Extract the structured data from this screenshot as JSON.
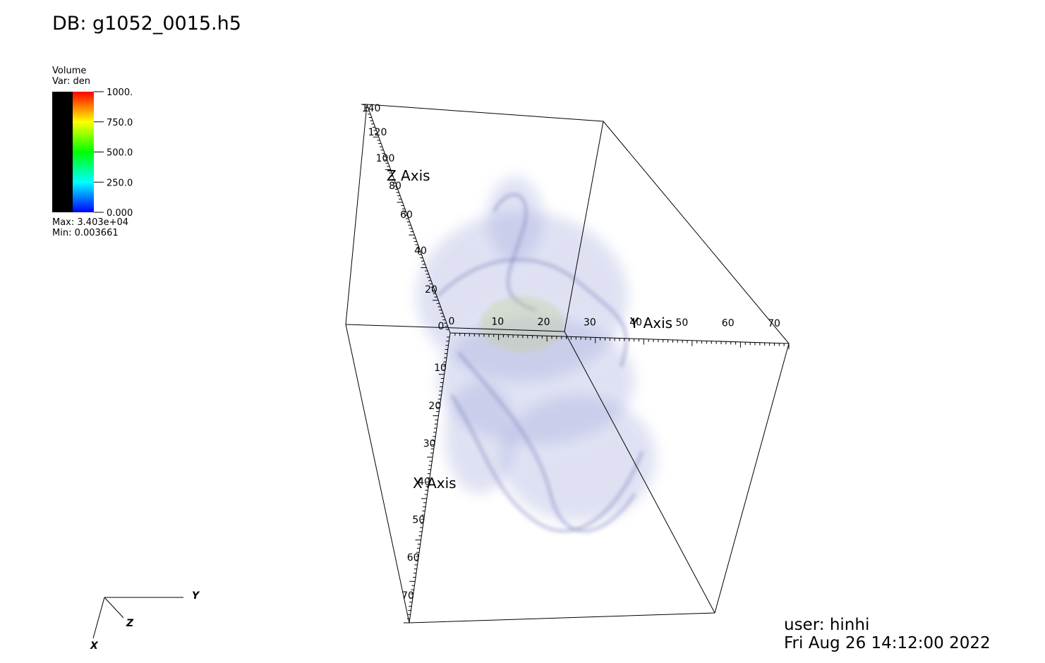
{
  "header": {
    "title": "DB: g1052_0015.h5"
  },
  "legend": {
    "plot": "Volume",
    "variable": "Var: den",
    "ticks": [
      "1000.",
      "750.0",
      "500.0",
      "250.0",
      "0.000"
    ],
    "max": "Max:  3.403e+04",
    "min": "Min:  0.003661"
  },
  "axes": {
    "x": {
      "title": "X Axis",
      "ticks": [
        10,
        20,
        30,
        40,
        50,
        60,
        70
      ]
    },
    "y": {
      "title": "Y Axis",
      "ticks": [
        0,
        10,
        20,
        30,
        40,
        50,
        60,
        70
      ]
    },
    "z": {
      "title": "Z Axis",
      "ticks": [
        0,
        20,
        40,
        60,
        80,
        100,
        120,
        140
      ]
    }
  },
  "triad": {
    "x": "X",
    "y": "Y",
    "z": "Z"
  },
  "footer": {
    "user": "user: hinhi",
    "date": "Fri Aug 26 14:12:00 2022"
  }
}
